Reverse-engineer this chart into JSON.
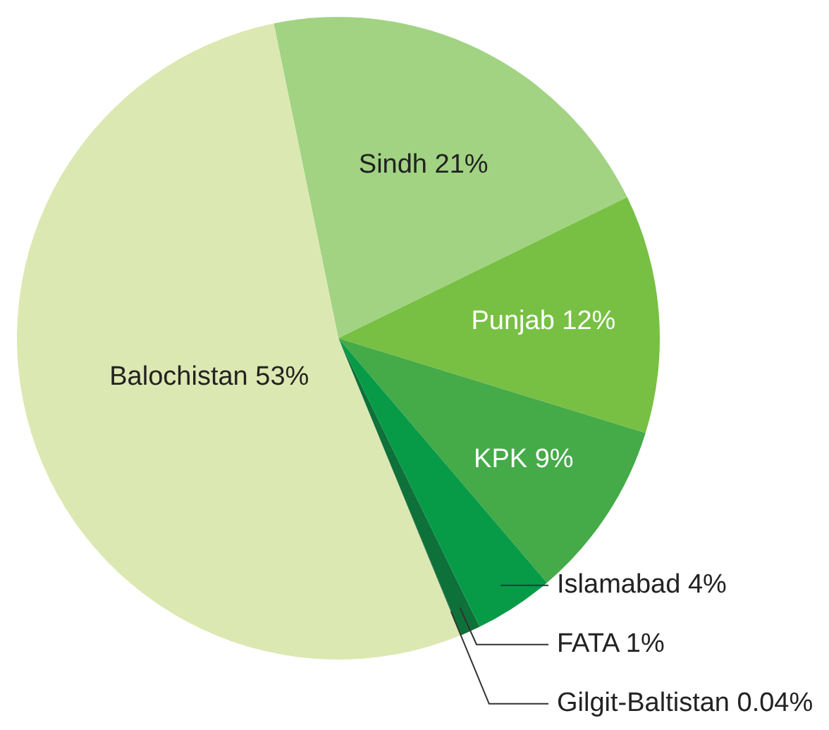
{
  "chart_data": {
    "type": "pie",
    "categories": [
      "Sindh",
      "Punjab",
      "KPK",
      "Islamabad",
      "FATA",
      "Gilgit-Baltistan",
      "Balochistan"
    ],
    "values": [
      21,
      12,
      9,
      4,
      1,
      0.04,
      53
    ],
    "value_labels": [
      "21%",
      "12%",
      "9%",
      "4%",
      "1%",
      "0.04%",
      "53%"
    ],
    "colors": [
      "#a2d383",
      "#77c043",
      "#45aa48",
      "#079b48",
      "#0d7139",
      "#0a5a2c",
      "#dce8b1"
    ]
  }
}
